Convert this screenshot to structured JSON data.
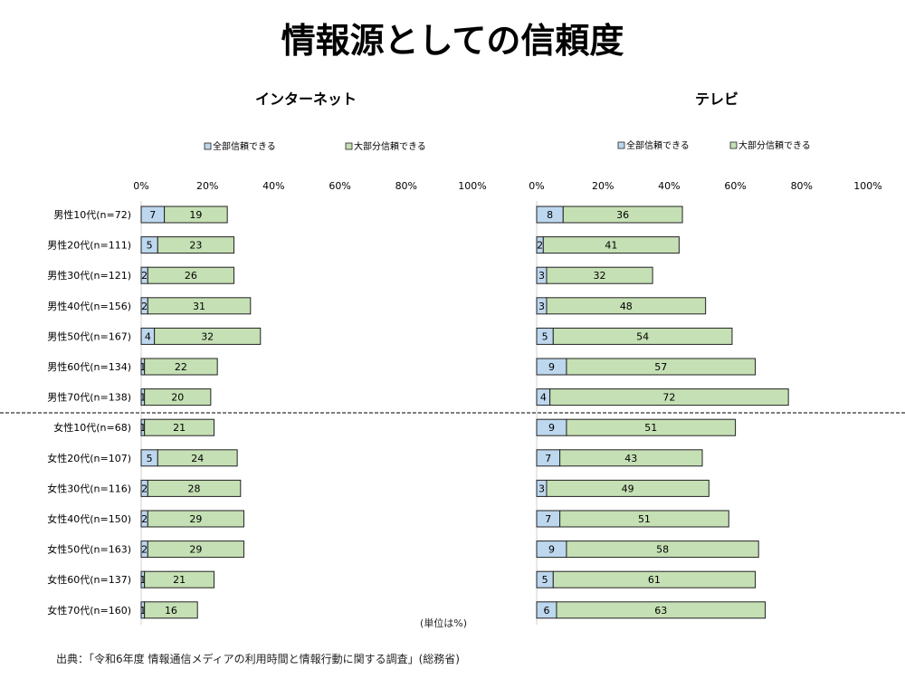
{
  "title": "情報源としての信頼度",
  "unit_note": "(単位は%)",
  "source": "出典：「令和6年度 情報通信メディアの利用時間と情報行動に関する調査」(総務省)",
  "colors": {
    "full": "#bdd7ee",
    "most": "#c5e0b4",
    "border": "#222222"
  },
  "chart_data": [
    {
      "type": "bar",
      "stacked": true,
      "orientation": "horizontal",
      "title": "インターネット",
      "xlim": [
        0,
        100
      ],
      "xticks": [
        "0%",
        "20%",
        "40%",
        "60%",
        "80%",
        "100%"
      ],
      "legend": [
        "全部信頼できる",
        "大部分信頼できる"
      ],
      "legend_placement": "top",
      "categories": [
        "男性10代(n=72)",
        "男性20代(n=111)",
        "男性30代(n=121)",
        "男性40代(n=156)",
        "男性50代(n=167)",
        "男性60代(n=134)",
        "男性70代(n=138)",
        "女性10代(n=68)",
        "女性20代(n=107)",
        "女性30代(n=116)",
        "女性40代(n=150)",
        "女性50代(n=163)",
        "女性60代(n=137)",
        "女性70代(n=160)"
      ],
      "series": [
        {
          "name": "全部信頼できる",
          "values": [
            7,
            5,
            2,
            2,
            4,
            1,
            1,
            1,
            5,
            2,
            2,
            2,
            1,
            1
          ]
        },
        {
          "name": "大部分信頼できる",
          "values": [
            19,
            23,
            26,
            31,
            32,
            22,
            20,
            21,
            24,
            28,
            29,
            29,
            21,
            16
          ]
        }
      ]
    },
    {
      "type": "bar",
      "stacked": true,
      "orientation": "horizontal",
      "title": "テレビ",
      "xlim": [
        0,
        100
      ],
      "xticks": [
        "0%",
        "20%",
        "40%",
        "60%",
        "80%",
        "100%"
      ],
      "legend": [
        "全部信頼できる",
        "大部分信頼できる"
      ],
      "legend_placement": "top",
      "series": [
        {
          "name": "全部信頼できる",
          "values": [
            8,
            2,
            3,
            3,
            5,
            9,
            4,
            9,
            7,
            3,
            7,
            9,
            5,
            6
          ]
        },
        {
          "name": "大部分信頼できる",
          "values": [
            36,
            41,
            32,
            48,
            54,
            57,
            72,
            51,
            43,
            49,
            51,
            58,
            61,
            63
          ]
        }
      ]
    }
  ]
}
